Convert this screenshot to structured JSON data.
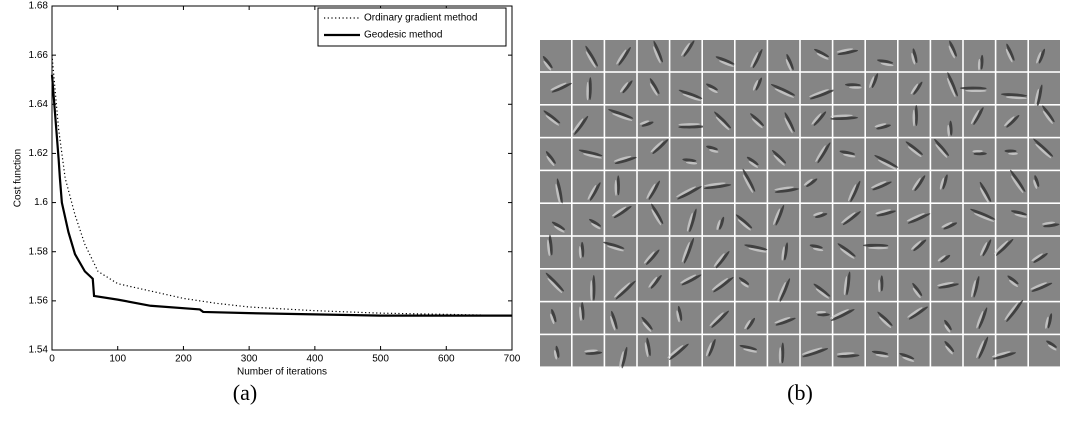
{
  "chart_data": {
    "type": "line",
    "xlabel": "Number of iterations",
    "ylabel": "Cost function",
    "xlim": [
      0,
      700
    ],
    "xticks": [
      0,
      100,
      200,
      300,
      400,
      500,
      600,
      700
    ],
    "ylim": [
      1.54,
      1.68
    ],
    "yticks": [
      1.54,
      1.56,
      1.58,
      1.6,
      1.62,
      1.64,
      1.66,
      1.68
    ],
    "legend": "upper right",
    "series": [
      {
        "name": "Ordinary gradient method",
        "color": "#000000",
        "linestyle": "dotted",
        "x": [
          0,
          10,
          20,
          35,
          50,
          70,
          100,
          150,
          200,
          250,
          300,
          400,
          500,
          600,
          700
        ],
        "values": [
          1.66,
          1.63,
          1.61,
          1.595,
          1.583,
          1.572,
          1.567,
          1.564,
          1.561,
          1.559,
          1.5575,
          1.556,
          1.555,
          1.5545,
          1.554
        ]
      },
      {
        "name": "Geodesic method",
        "color": "#000000",
        "linestyle": "solid",
        "x": [
          0,
          5,
          10,
          12,
          15,
          25,
          35,
          50,
          62,
          64,
          100,
          150,
          225,
          230,
          300,
          400,
          500,
          700
        ],
        "values": [
          1.652,
          1.635,
          1.618,
          1.61,
          1.6,
          1.588,
          1.579,
          1.572,
          1.569,
          1.562,
          1.5605,
          1.558,
          1.5565,
          1.5555,
          1.555,
          1.5545,
          1.554,
          1.554
        ]
      }
    ]
  },
  "captions": [
    "(a)",
    "(b)"
  ]
}
